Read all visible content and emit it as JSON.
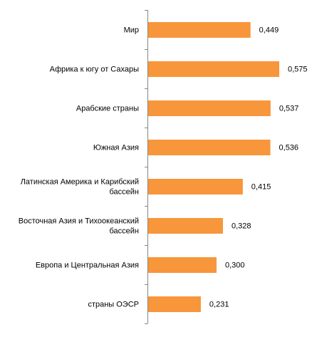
{
  "chart_data": {
    "type": "bar",
    "orientation": "horizontal",
    "categories": [
      [
        "Мир"
      ],
      [
        "Африка к югу от Сахары"
      ],
      [
        "Арабские страны"
      ],
      [
        "Южная Азия"
      ],
      [
        "Латинская Америка и Карибский",
        "бассейн"
      ],
      [
        "Восточная Азия и Тихоокеанский",
        "бассейн"
      ],
      [
        "Европа и Центральная Азия"
      ],
      [
        "страны ОЭСР"
      ]
    ],
    "values": [
      0.449,
      0.575,
      0.537,
      0.536,
      0.415,
      0.328,
      0.3,
      0.231
    ],
    "value_labels": [
      "0,449",
      "0,575",
      "0,537",
      "0,536",
      "0,415",
      "0,328",
      "0,300",
      "0,231"
    ],
    "xlim": [
      0,
      0.6
    ],
    "bar_color": "#F7963B",
    "title": "",
    "xlabel": "",
    "ylabel": "",
    "grid": false,
    "legend": "none"
  }
}
